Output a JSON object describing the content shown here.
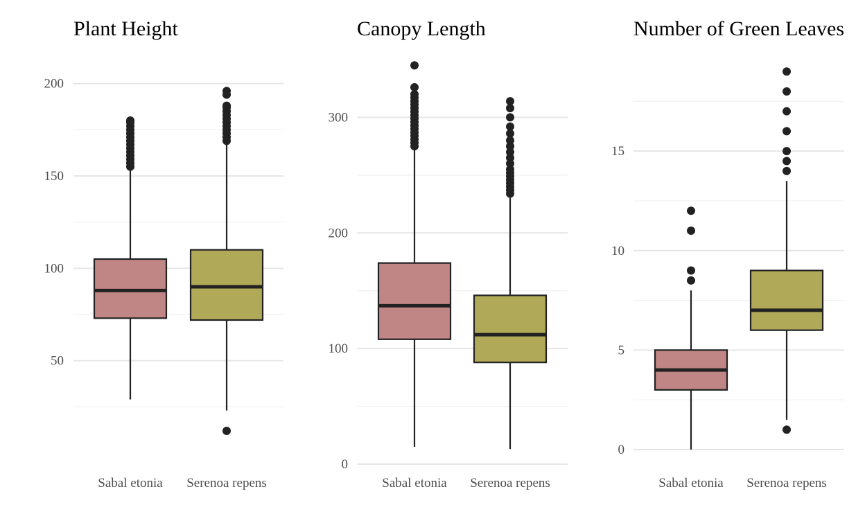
{
  "colors": {
    "sabal": "#c08585",
    "serenoa": "#b0aa58",
    "outline": "#222222",
    "grid_major": "#e6e6e6",
    "grid_minor": "#f0f0f0"
  },
  "chart_data": [
    {
      "type": "boxplot",
      "title": "Plant Height",
      "categories": [
        "Sabal etonia",
        "Serenoa repens"
      ],
      "ylim": [
        0,
        213
      ],
      "yticks": [
        50,
        100,
        150,
        200
      ],
      "grid": true,
      "boxes": [
        {
          "category": "Sabal etonia",
          "whisker_low": 29,
          "q1": 73,
          "median": 88,
          "q3": 105,
          "whisker_high": 154,
          "outliers": [
            155,
            157,
            159,
            161,
            163,
            165,
            167,
            169,
            171,
            173,
            175,
            177,
            179,
            180
          ]
        },
        {
          "category": "Serenoa repens",
          "whisker_low": 23,
          "q1": 72,
          "median": 90,
          "q3": 110,
          "whisker_high": 168,
          "outliers": [
            12,
            169,
            171,
            173,
            175,
            177,
            179,
            181,
            183,
            185,
            187,
            188,
            194,
            196
          ]
        }
      ]
    },
    {
      "type": "boxplot",
      "title": "Canopy Length",
      "categories": [
        "Sabal etonia",
        "Serenoa repens"
      ],
      "ylim": [
        0,
        350
      ],
      "yticks": [
        0,
        100,
        200,
        300
      ],
      "grid": true,
      "boxes": [
        {
          "category": "Sabal etonia",
          "whisker_low": 15,
          "q1": 108,
          "median": 137,
          "q3": 174,
          "whisker_high": 272,
          "outliers": [
            275,
            278,
            281,
            284,
            287,
            290,
            293,
            296,
            299,
            302,
            305,
            308,
            311,
            314,
            317,
            320,
            326,
            345
          ]
        },
        {
          "category": "Serenoa repens",
          "whisker_low": 13,
          "q1": 88,
          "median": 112,
          "q3": 146,
          "whisker_high": 232,
          "outliers": [
            234,
            237,
            240,
            243,
            246,
            249,
            252,
            255,
            260,
            265,
            270,
            275,
            280,
            286,
            292,
            300,
            308,
            314
          ]
        }
      ]
    },
    {
      "type": "boxplot",
      "title": "Number of Green Leaves",
      "categories": [
        "Sabal etonia",
        "Serenoa repens"
      ],
      "ylim": [
        0,
        19.6
      ],
      "yticks": [
        0,
        5,
        10,
        15
      ],
      "grid": true,
      "boxes": [
        {
          "category": "Sabal etonia",
          "whisker_low": 0,
          "q1": 3,
          "median": 4,
          "q3": 5,
          "whisker_high": 8,
          "outliers": [
            8.5,
            9,
            11,
            12
          ]
        },
        {
          "category": "Serenoa repens",
          "whisker_low": 1.5,
          "q1": 6,
          "median": 7,
          "q3": 9,
          "whisker_high": 13.5,
          "outliers": [
            1,
            14,
            14.5,
            15,
            16,
            17,
            18,
            19
          ]
        }
      ]
    }
  ]
}
